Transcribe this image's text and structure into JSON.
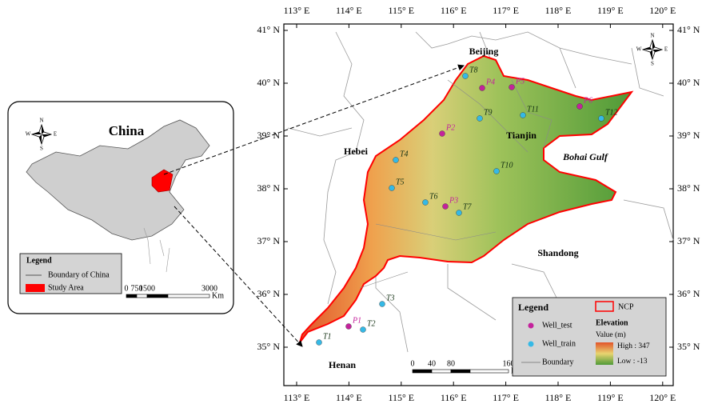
{
  "map": {
    "lon_labels": [
      "113° E",
      "114° E",
      "115° E",
      "116° E",
      "117° E",
      "118° E",
      "119° E",
      "120° E"
    ],
    "lat_labels": [
      "35° N",
      "36° N",
      "37° N",
      "38° N",
      "39° N",
      "40° N",
      "41° N"
    ],
    "places": [
      "Beijing",
      "Tianjin",
      "Hebei",
      "Bohai Gulf",
      "Shandong",
      "Henan"
    ],
    "wells_train": [
      "T1",
      "T2",
      "T3",
      "T4",
      "T5",
      "T6",
      "T7",
      "T8",
      "T9",
      "T10",
      "T11",
      "T12"
    ],
    "wells_test": [
      "P1",
      "P2",
      "P3",
      "P4",
      "P5",
      "P6"
    ],
    "train_color": "#35b9e6",
    "test_color": "#c4229c",
    "compass": [
      "N",
      "S",
      "E",
      "W"
    ],
    "scale_bar": {
      "labels": [
        "0",
        "40",
        "80",
        "160"
      ],
      "unit": "Km"
    },
    "legend": {
      "title": "Legend",
      "items": [
        "Well_test",
        "Well_train",
        "Boundary"
      ],
      "ncp": "NCP",
      "elevation_title": "Elevation",
      "value_label": "Value (m)",
      "high": "High : 347",
      "low": "Low : -13"
    }
  },
  "inset": {
    "title": "China",
    "legend_title": "Legend",
    "items": [
      "Boundary of China",
      "Study Area"
    ],
    "scale_labels": [
      "0",
      "750",
      "1500",
      "3000"
    ],
    "unit": "Km"
  }
}
